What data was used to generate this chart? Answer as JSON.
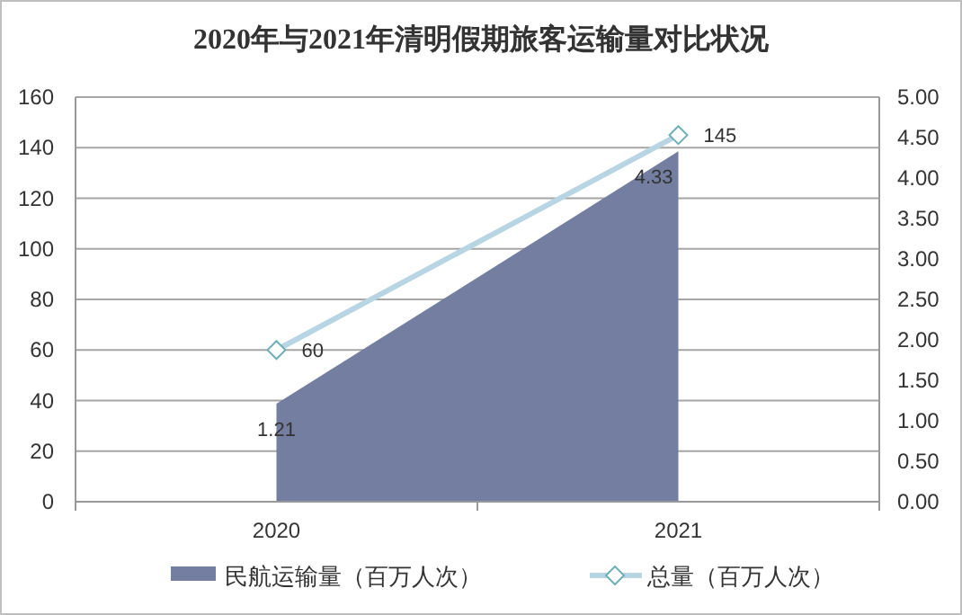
{
  "chart_data": {
    "type": "area",
    "title": "2020年与2021年清明假期旅客运输量对比状况",
    "categories": [
      "2020",
      "2021"
    ],
    "series": [
      {
        "name": "民航运输量（百万人次）",
        "axis": "y2",
        "color": "#747ea0",
        "values": [
          1.21,
          4.33
        ],
        "value_labels": [
          "1.21",
          "4.33"
        ]
      },
      {
        "name": "总量（百万人次）",
        "type": "line",
        "color": "#b8d5e3",
        "marker": "diamond",
        "values": [
          60,
          145
        ],
        "value_labels": [
          "60",
          "145"
        ]
      }
    ],
    "ylim": [
      0,
      160
    ],
    "yticks": [
      0,
      20,
      40,
      60,
      80,
      100,
      120,
      140,
      160
    ],
    "y2lim": [
      0,
      5
    ],
    "y2ticks": [
      {
        "value": 0,
        "label": "0.00"
      },
      {
        "value": 0.5,
        "label": "0.50"
      },
      {
        "value": 1,
        "label": "1.00"
      },
      {
        "value": 1.5,
        "label": "1.50"
      },
      {
        "value": 2,
        "label": "2.00"
      },
      {
        "value": 2.5,
        "label": "2.50"
      },
      {
        "value": 3,
        "label": "3.00"
      },
      {
        "value": 3.5,
        "label": "3.50"
      },
      {
        "value": 4,
        "label": "4.00"
      },
      {
        "value": 4.5,
        "label": "4.50"
      },
      {
        "value": 5,
        "label": "5.00"
      }
    ],
    "grid": "y",
    "legend": "bottom"
  }
}
